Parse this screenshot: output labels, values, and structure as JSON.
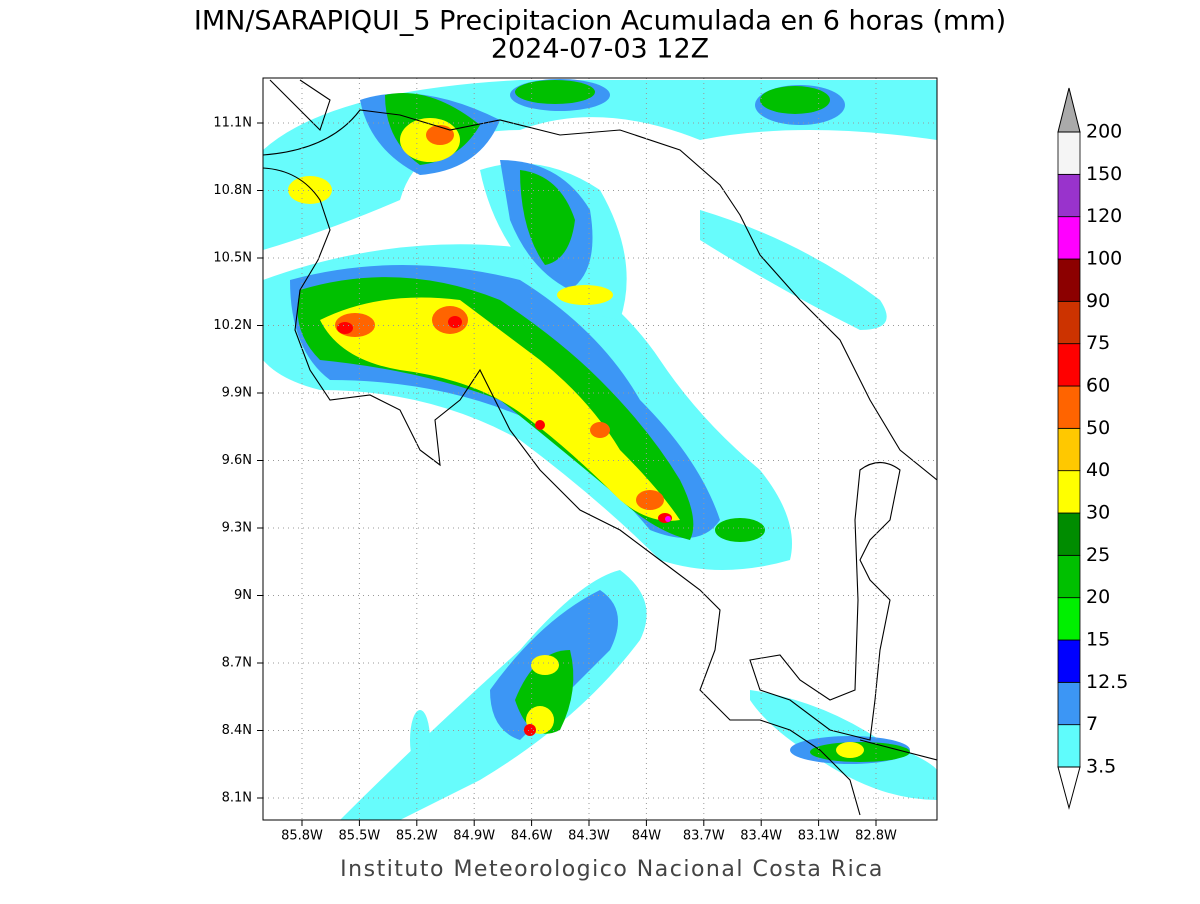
{
  "title": [
    "IMN/SARAPIQUI_5 Precipitacion Acumulada en 6 horas (mm)",
    "2024-07-03 12Z"
  ],
  "lat_labels": [
    "11.1N",
    "10.8N",
    "10.5N",
    "10.2N",
    "9.9N",
    "9.6N",
    "9.3N",
    "9N",
    "8.7N",
    "8.4N",
    "8.1N"
  ],
  "lon_labels": [
    "85.8W",
    "85.5W",
    "85.2W",
    "84.9W",
    "84.6W",
    "84.3W",
    "84W",
    "83.7W",
    "83.4W",
    "83.1W",
    "82.8W"
  ],
  "colorbar": {
    "levels": [
      "3.5",
      "7",
      "12.5",
      "15",
      "20",
      "25",
      "30",
      "40",
      "50",
      "60",
      "75",
      "90",
      "100",
      "120",
      "150",
      "200"
    ],
    "colors": [
      "#5ffcfc",
      "#3c96f5",
      "#0000ff",
      "#00f000",
      "#00c000",
      "#008c00",
      "#ffff00",
      "#ffc800",
      "#ff6400",
      "#ff0000",
      "#cc3300",
      "#8c0000",
      "#ff00ff",
      "#9933cc",
      "#f5f5f5"
    ]
  },
  "footer": "Instituto Meteorologico Nacional Costa Rica"
}
